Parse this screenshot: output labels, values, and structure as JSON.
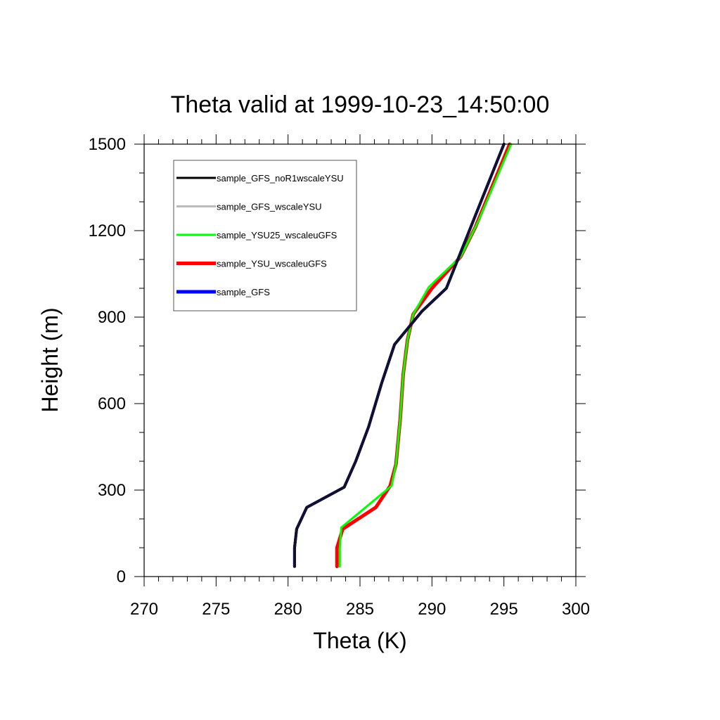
{
  "chart_data": {
    "type": "line",
    "title": "Theta valid at 1999-10-23_14:50:00",
    "xlabel": "Theta (K)",
    "ylabel": "Height (m)",
    "xlim": [
      270,
      300
    ],
    "ylim": [
      0,
      1500
    ],
    "x_ticks": [
      "270",
      "275",
      "280",
      "285",
      "290",
      "295",
      "300"
    ],
    "y_ticks": [
      "0",
      "300",
      "600",
      "900",
      "1200",
      "1500"
    ],
    "grid": false,
    "legend_position": "top-left",
    "series": [
      {
        "name": "sample_GFS_noR1wscaleYSU",
        "color": "#000000",
        "points": [
          [
            280.45,
            35
          ],
          [
            280.45,
            100
          ],
          [
            280.6,
            165
          ],
          [
            281.3,
            240
          ],
          [
            283.9,
            310
          ],
          [
            284.7,
            400
          ],
          [
            285.6,
            520
          ],
          [
            286.5,
            670
          ],
          [
            287.4,
            805
          ],
          [
            289.3,
            920
          ],
          [
            291.0,
            1000
          ],
          [
            293.0,
            1250
          ],
          [
            295.0,
            1500
          ]
        ]
      },
      {
        "name": "sample_GFS_wscaleYSU",
        "color": "#bbbbbb",
        "points": [
          [
            280.45,
            35
          ],
          [
            280.45,
            100
          ],
          [
            280.6,
            165
          ],
          [
            281.3,
            240
          ],
          [
            283.9,
            310
          ],
          [
            284.7,
            400
          ],
          [
            285.6,
            520
          ],
          [
            286.5,
            670
          ],
          [
            287.4,
            805
          ],
          [
            289.3,
            920
          ],
          [
            291.0,
            1000
          ],
          [
            293.0,
            1250
          ],
          [
            295.0,
            1500
          ]
        ]
      },
      {
        "name": "sample_YSU25_wscaleuGFS",
        "color": "#00ff00",
        "points": [
          [
            283.6,
            35
          ],
          [
            283.6,
            100
          ],
          [
            283.7,
            170
          ],
          [
            287.2,
            315
          ],
          [
            287.5,
            390
          ],
          [
            287.8,
            550
          ],
          [
            288.0,
            700
          ],
          [
            288.3,
            820
          ],
          [
            288.7,
            910
          ],
          [
            289.8,
            1005
          ],
          [
            292.0,
            1110
          ],
          [
            293.2,
            1230
          ],
          [
            295.5,
            1500
          ]
        ]
      },
      {
        "name": "sample_YSU_wscaleuGFS",
        "color": "#ff0000",
        "points": [
          [
            283.4,
            35
          ],
          [
            283.4,
            100
          ],
          [
            283.8,
            165
          ],
          [
            286.1,
            240
          ],
          [
            287.1,
            315
          ],
          [
            287.5,
            390
          ],
          [
            287.8,
            550
          ],
          [
            288.0,
            700
          ],
          [
            288.3,
            820
          ],
          [
            288.7,
            910
          ],
          [
            290.0,
            1000
          ],
          [
            292.0,
            1110
          ],
          [
            293.0,
            1210
          ],
          [
            295.4,
            1500
          ]
        ]
      },
      {
        "name": "sample_GFS",
        "color": "#0000ff",
        "points": [
          [
            280.45,
            35
          ],
          [
            280.45,
            100
          ],
          [
            280.6,
            165
          ],
          [
            281.3,
            240
          ],
          [
            283.9,
            310
          ],
          [
            284.7,
            400
          ],
          [
            285.6,
            520
          ],
          [
            286.5,
            670
          ],
          [
            287.4,
            805
          ],
          [
            289.3,
            920
          ],
          [
            291.0,
            1000
          ],
          [
            293.0,
            1250
          ],
          [
            295.0,
            1500
          ]
        ]
      }
    ]
  }
}
